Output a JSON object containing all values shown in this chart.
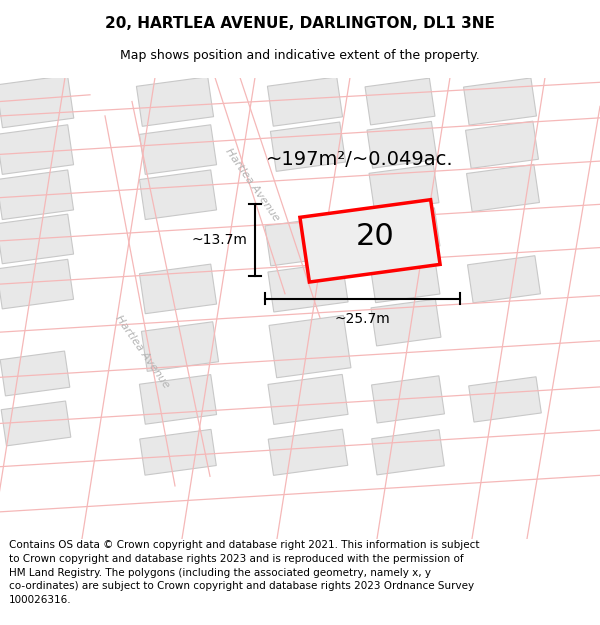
{
  "title": "20, HARTLEA AVENUE, DARLINGTON, DL1 3NE",
  "subtitle": "Map shows position and indicative extent of the property.",
  "footer": "Contains OS data © Crown copyright and database right 2021. This information is subject\nto Crown copyright and database rights 2023 and is reproduced with the permission of\nHM Land Registry. The polygons (including the associated geometry, namely x, y\nco-ordinates) are subject to Crown copyright and database rights 2023 Ordnance Survey\n100026316.",
  "background_color": "#ffffff",
  "line_color": "#f5b8b8",
  "building_fill": "#e8e8e8",
  "building_edge": "#c8c8c8",
  "prop_fill": "#eeeeee",
  "prop_edge": "#ff0000",
  "area_label": "~197m²/~0.049ac.",
  "number_label": "20",
  "dim_width": "~25.7m",
  "dim_height": "~13.7m",
  "road_label": "Hartlea Avenue",
  "title_fontsize": 11,
  "subtitle_fontsize": 9,
  "footer_fontsize": 7.5,
  "area_fontsize": 14,
  "number_fontsize": 22,
  "road_fontsize": 8,
  "dim_fontsize": 10
}
